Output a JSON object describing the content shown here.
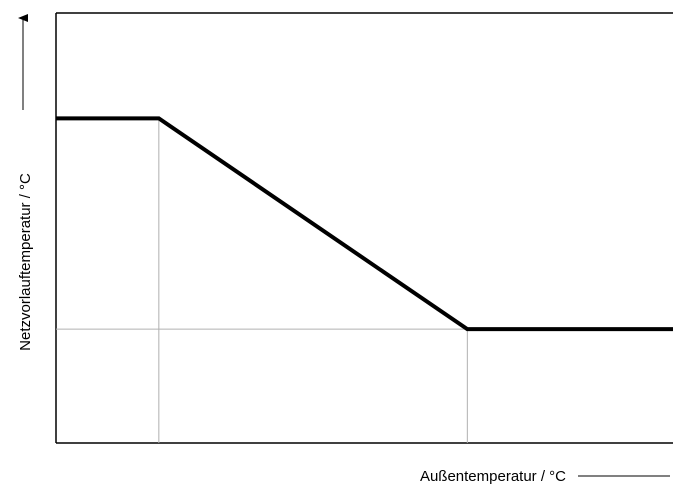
{
  "chart_data": {
    "type": "line",
    "title": "",
    "xlabel": "Außentemperatur / °C",
    "ylabel": "Netzvorlauftemperatur / °C",
    "x": [
      0,
      1,
      4,
      6
    ],
    "series": [
      {
        "values": [
          2,
          2,
          0,
          0
        ]
      }
    ],
    "xlim": [
      0,
      6
    ],
    "ylim": [
      -1.08,
      3
    ],
    "reference_lines": {
      "vertical_at_x": [
        1,
        4
      ],
      "horizontal_at_y": [
        0
      ]
    },
    "grid": false,
    "legend": "none",
    "colors": {
      "series": "#000000",
      "frame": "#000000",
      "reference": "#b0b0b0"
    }
  }
}
